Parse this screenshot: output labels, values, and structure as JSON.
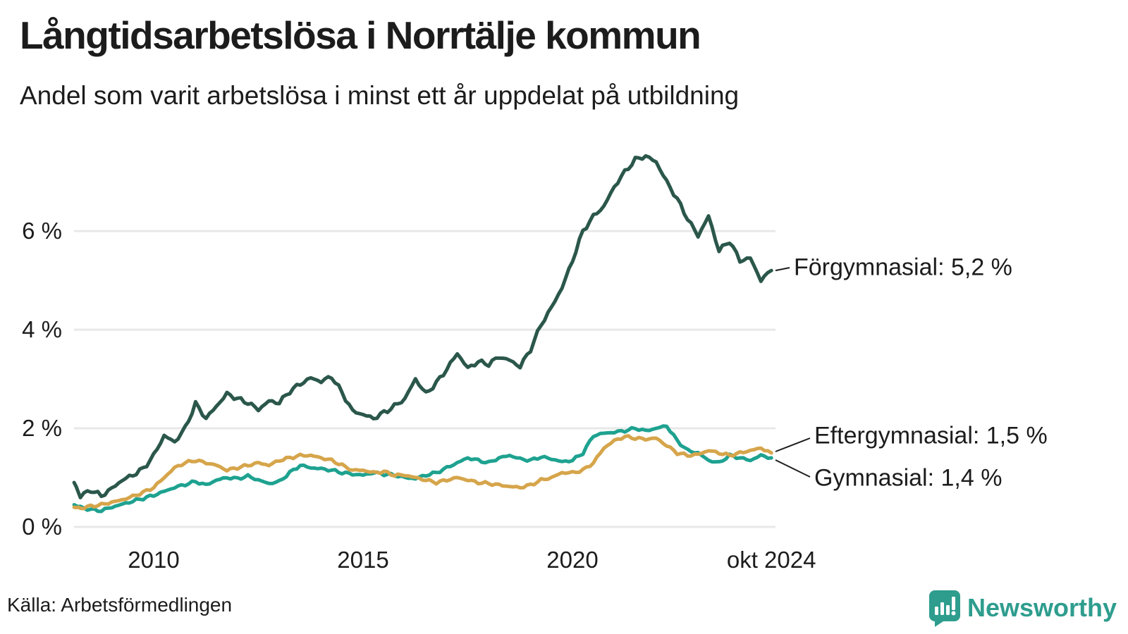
{
  "header": {
    "title": "Långtidsarbetslösa i Norrtälje kommun",
    "subtitle": "Andel som varit arbetslösa i minst ett år uppdelat på utbildning"
  },
  "footer": {
    "source": "Källa: Arbetsförmedlingen",
    "brand": {
      "name": "Newsworthy",
      "color": "#2e9d8e"
    }
  },
  "chart_data": {
    "type": "line",
    "title": "Långtidsarbetslösa i Norrtälje kommun",
    "subtitle": "Andel som varit arbetslösa i minst ett år uppdelat på utbildning",
    "xlabel": "",
    "ylabel": "",
    "y_unit": "%",
    "ylim": [
      0,
      7.6
    ],
    "xlim": [
      2008.1,
      2024.75
    ],
    "grid": "horizontal",
    "grid_color": "#e8e8e8",
    "legend_position": "right-end-labels",
    "y_ticks": [
      {
        "value": 6,
        "label": "6 %"
      },
      {
        "value": 4,
        "label": "4 %"
      },
      {
        "value": 2,
        "label": "2 %"
      },
      {
        "value": 0,
        "label": "0 %"
      }
    ],
    "x_ticks": [
      {
        "value": 2010,
        "label": "2010"
      },
      {
        "value": 2015,
        "label": "2015"
      },
      {
        "value": 2020,
        "label": "2020"
      },
      {
        "value": 2024.75,
        "label": "okt 2024"
      }
    ],
    "x": [
      2008.1,
      2008.25,
      2008.5,
      2008.75,
      2009.0,
      2009.25,
      2009.5,
      2009.75,
      2010.0,
      2010.25,
      2010.5,
      2010.75,
      2011.0,
      2011.25,
      2011.5,
      2011.75,
      2012.0,
      2012.25,
      2012.5,
      2012.75,
      2013.0,
      2013.25,
      2013.5,
      2013.75,
      2014.0,
      2014.25,
      2014.5,
      2014.75,
      2015.0,
      2015.25,
      2015.5,
      2015.75,
      2016.0,
      2016.25,
      2016.5,
      2016.75,
      2017.0,
      2017.25,
      2017.5,
      2017.75,
      2018.0,
      2018.25,
      2018.5,
      2018.75,
      2019.0,
      2019.25,
      2019.5,
      2019.75,
      2020.0,
      2020.25,
      2020.5,
      2020.75,
      2021.0,
      2021.25,
      2021.5,
      2021.75,
      2022.0,
      2022.25,
      2022.5,
      2022.75,
      2023.0,
      2023.25,
      2023.5,
      2023.75,
      2024.0,
      2024.25,
      2024.5,
      2024.75
    ],
    "series": [
      {
        "name": "Förgymnasial",
        "color": "#2b574b",
        "end_value_label": "5,2 %",
        "end_label": "Förgymnasial: 5,2 %",
        "values": [
          0.9,
          0.62,
          0.75,
          0.63,
          0.78,
          0.95,
          1.05,
          1.18,
          1.45,
          1.85,
          1.72,
          2.0,
          2.5,
          2.2,
          2.45,
          2.7,
          2.6,
          2.52,
          2.38,
          2.55,
          2.52,
          2.75,
          2.9,
          3.02,
          2.95,
          3.05,
          2.72,
          2.35,
          2.28,
          2.2,
          2.32,
          2.45,
          2.6,
          3.0,
          2.7,
          2.92,
          3.2,
          3.52,
          3.22,
          3.35,
          3.3,
          3.45,
          3.38,
          3.25,
          3.6,
          4.1,
          4.45,
          4.85,
          5.4,
          6.0,
          6.3,
          6.5,
          6.9,
          7.2,
          7.45,
          7.52,
          7.4,
          7.0,
          6.65,
          6.25,
          5.9,
          6.3,
          5.6,
          5.8,
          5.4,
          5.45,
          5.0,
          5.2
        ]
      },
      {
        "name": "Eftergymnasial",
        "color": "#d6a54b",
        "end_value_label": "1,5 %",
        "end_label": "Eftergymnasial: 1,5 %",
        "values": [
          0.4,
          0.38,
          0.42,
          0.45,
          0.5,
          0.55,
          0.62,
          0.7,
          0.8,
          1.0,
          1.2,
          1.3,
          1.35,
          1.3,
          1.25,
          1.15,
          1.2,
          1.25,
          1.3,
          1.25,
          1.35,
          1.4,
          1.45,
          1.45,
          1.4,
          1.35,
          1.25,
          1.15,
          1.15,
          1.1,
          1.12,
          1.05,
          1.05,
          1.0,
          0.95,
          0.9,
          0.95,
          1.0,
          0.95,
          0.9,
          0.88,
          0.85,
          0.82,
          0.8,
          0.85,
          0.95,
          1.0,
          1.1,
          1.1,
          1.15,
          1.3,
          1.6,
          1.75,
          1.83,
          1.8,
          1.78,
          1.8,
          1.65,
          1.5,
          1.45,
          1.47,
          1.55,
          1.5,
          1.45,
          1.5,
          1.55,
          1.6,
          1.5
        ]
      },
      {
        "name": "Gymnasial",
        "color": "#1ea290",
        "end_value_label": "1,4 %",
        "end_label": "Gymnasial: 1,4 %",
        "values": [
          0.45,
          0.4,
          0.35,
          0.33,
          0.4,
          0.46,
          0.52,
          0.58,
          0.64,
          0.72,
          0.8,
          0.86,
          0.92,
          0.85,
          0.95,
          1.0,
          0.98,
          1.03,
          0.95,
          0.88,
          0.92,
          1.1,
          1.25,
          1.2,
          1.18,
          1.15,
          1.1,
          1.07,
          1.05,
          1.1,
          1.07,
          1.05,
          1.0,
          0.98,
          1.05,
          1.1,
          1.2,
          1.3,
          1.4,
          1.35,
          1.3,
          1.4,
          1.45,
          1.38,
          1.35,
          1.42,
          1.38,
          1.32,
          1.35,
          1.5,
          1.85,
          1.9,
          1.92,
          1.95,
          2.0,
          1.95,
          2.0,
          2.05,
          1.75,
          1.55,
          1.5,
          1.35,
          1.3,
          1.45,
          1.4,
          1.35,
          1.45,
          1.4
        ]
      }
    ]
  }
}
